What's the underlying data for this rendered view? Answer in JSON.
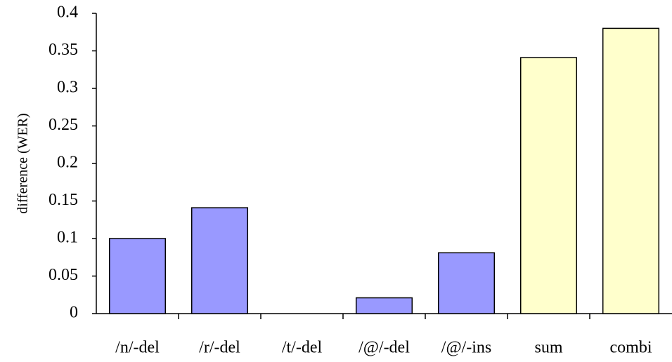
{
  "chart_data": {
    "type": "bar",
    "y_label": "difference (WER)",
    "categories": [
      "/n/-del",
      "/r/-del",
      "/t/-del",
      "/@/-del",
      "/@/-ins",
      "sum",
      "combi"
    ],
    "values": [
      0.1,
      0.141,
      0,
      0.021,
      0.081,
      0.341,
      0.38
    ],
    "colors": [
      "#9999ff",
      "#9999ff",
      "#9999ff",
      "#9999ff",
      "#9999ff",
      "#ffffcc",
      "#ffffcc"
    ],
    "ylim": [
      0,
      0.4
    ],
    "yticks": [
      0,
      0.05,
      0.1,
      0.15,
      0.2,
      0.25,
      0.3,
      0.35,
      0.4
    ],
    "grid": false
  }
}
